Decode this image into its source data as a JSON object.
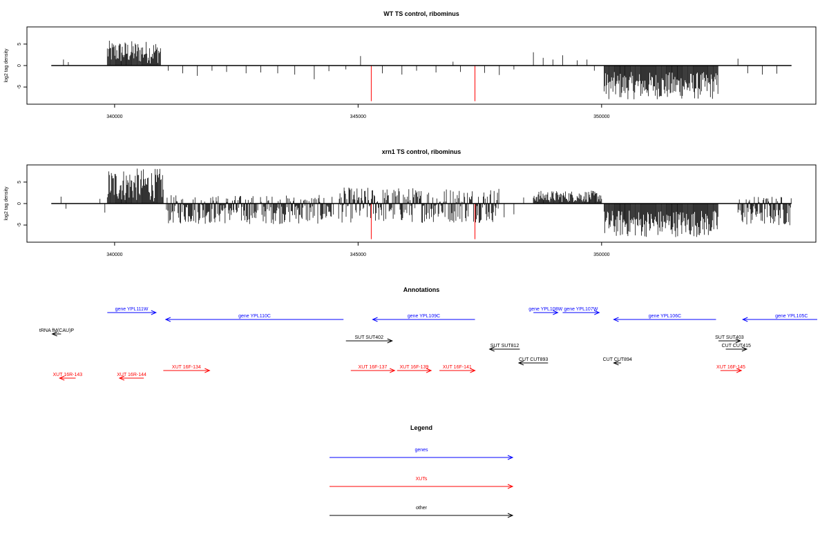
{
  "chart_data": [
    {
      "type": "bar",
      "title": "WT TS control, ribominus",
      "ylabel": "log2 tag density",
      "xlabel": "",
      "xlim": [
        338200,
        354400
      ],
      "ylim": [
        -9,
        9
      ],
      "x_ticks": [
        340000,
        345000,
        350000
      ],
      "x_tick_labels": [
        "340000",
        "345000",
        "350000"
      ],
      "y_ticks": [
        -5,
        0,
        5
      ],
      "y_tick_labels": [
        "-5",
        "0",
        "5"
      ],
      "baseline_range": [
        338700,
        353900
      ],
      "regions": [
        {
          "start": 339850,
          "end": 340950,
          "min": 0.5,
          "max": 5.8
        },
        {
          "start": 350050,
          "end": 352400,
          "min": -7.9,
          "max": -1.5
        }
      ],
      "sparse": [
        [
          338950,
          1.4
        ],
        [
          339050,
          0.8
        ],
        [
          341100,
          -1.2
        ],
        [
          341400,
          -1.8
        ],
        [
          341700,
          -2.4
        ],
        [
          342000,
          -1.2
        ],
        [
          342300,
          -1.5
        ],
        [
          342700,
          -1.8
        ],
        [
          343000,
          -1.6
        ],
        [
          343350,
          -1.8
        ],
        [
          343700,
          -2.1
        ],
        [
          344100,
          -3.2
        ],
        [
          344400,
          -1.3
        ],
        [
          344750,
          -0.9
        ],
        [
          345050,
          2.2
        ],
        [
          345500,
          -1.8
        ],
        [
          345900,
          -2.1
        ],
        [
          346200,
          -1.2
        ],
        [
          346600,
          -1.6
        ],
        [
          346950,
          0.9
        ],
        [
          347100,
          -1.5
        ],
        [
          347600,
          -1.7
        ],
        [
          347900,
          -2.2
        ],
        [
          348200,
          -0.9
        ],
        [
          348600,
          3.1
        ],
        [
          348800,
          1.8
        ],
        [
          349000,
          1.4
        ],
        [
          349200,
          2.4
        ],
        [
          349500,
          1.2
        ],
        [
          349700,
          1.4
        ],
        [
          349850,
          -1.2
        ],
        [
          352800,
          1.6
        ],
        [
          353000,
          -1.8
        ],
        [
          353300,
          -2.1
        ],
        [
          353600,
          -1.9
        ]
      ],
      "highlights": [
        {
          "x": 345270,
          "y": -8.3,
          "color": "#ff0000"
        },
        {
          "x": 347400,
          "y": -8.3,
          "color": "#ff0000"
        }
      ]
    },
    {
      "type": "bar",
      "title": "xrn1 TS control, ribominus",
      "ylabel": "log2 tag density",
      "xlabel": "",
      "xlim": [
        338200,
        354400
      ],
      "ylim": [
        -9,
        9
      ],
      "x_ticks": [
        340000,
        345000,
        350000
      ],
      "x_tick_labels": [
        "340000",
        "345000",
        "350000"
      ],
      "y_ticks": [
        -5,
        0,
        5
      ],
      "y_tick_labels": [
        "-5",
        "0",
        "5"
      ],
      "baseline_range": [
        338700,
        353900
      ],
      "regions": [
        {
          "start": 339850,
          "end": 341000,
          "min": 0.5,
          "max": 8.2
        },
        {
          "start": 341050,
          "end": 344500,
          "min": -4.8,
          "max": 2.0
        },
        {
          "start": 344600,
          "end": 347900,
          "min": -4.5,
          "max": 3.8
        },
        {
          "start": 348600,
          "end": 350000,
          "min": 0.3,
          "max": 3.0
        },
        {
          "start": 350050,
          "end": 352400,
          "min": -7.8,
          "max": -1.5
        },
        {
          "start": 352800,
          "end": 353900,
          "min": -5.2,
          "max": 1.8
        }
      ],
      "sparse": [
        [
          338900,
          1.6
        ],
        [
          339000,
          -1.2
        ],
        [
          339700,
          1.1
        ],
        [
          339800,
          -2.1
        ],
        [
          348000,
          -3.2
        ],
        [
          348200,
          -2.5
        ],
        [
          348400,
          1.4
        ]
      ],
      "highlights": [
        {
          "x": 345270,
          "y": -8.3,
          "color": "#ff0000"
        },
        {
          "x": 347400,
          "y": -8.3,
          "color": "#ff0000"
        }
      ]
    }
  ],
  "annotations": {
    "title": "Annotations",
    "items": [
      {
        "label": "gene YPL111W",
        "start": 339850,
        "end": 340850,
        "dir": "right",
        "row": 0,
        "cat": "gene"
      },
      {
        "label": "gene YPL110C",
        "start": 341050,
        "end": 344700,
        "dir": "left",
        "row": 1,
        "cat": "gene"
      },
      {
        "label": "gene YPL109C",
        "start": 345300,
        "end": 347400,
        "dir": "left",
        "row": 1,
        "cat": "gene"
      },
      {
        "label": "gene YPL108W",
        "start": 348600,
        "end": 349100,
        "dir": "right",
        "row": 0,
        "cat": "gene"
      },
      {
        "label": "gene YPL107W",
        "start": 349200,
        "end": 349950,
        "dir": "right",
        "row": 0,
        "cat": "gene"
      },
      {
        "label": "gene YPL106C",
        "start": 350250,
        "end": 352350,
        "dir": "left",
        "row": 1,
        "cat": "gene"
      },
      {
        "label": "gene YPL105C",
        "start": 352900,
        "end": 354900,
        "dir": "left",
        "row": 1,
        "cat": "gene"
      },
      {
        "label": "tRNA fM(CAU)P",
        "start": 338720,
        "end": 338900,
        "dir": "left",
        "row": 2,
        "cat": "other"
      },
      {
        "label": "SUT SUT402",
        "start": 344750,
        "end": 345700,
        "dir": "right",
        "row": 3,
        "cat": "other"
      },
      {
        "label": "SUT SUT812",
        "start": 347700,
        "end": 348320,
        "dir": "left",
        "row": 4,
        "cat": "other"
      },
      {
        "label": "CUT CUT893",
        "start": 348300,
        "end": 348900,
        "dir": "left",
        "row": 5,
        "cat": "other"
      },
      {
        "label": "CUT CUT894",
        "start": 350250,
        "end": 350400,
        "dir": "left",
        "row": 5,
        "cat": "other"
      },
      {
        "label": "SUT SUT403",
        "start": 352400,
        "end": 352850,
        "dir": "right",
        "row": 3,
        "cat": "other"
      },
      {
        "label": "CUT CUT415",
        "start": 352550,
        "end": 352980,
        "dir": "right",
        "row": 4,
        "cat": "other"
      },
      {
        "label": "XUT 16R-143",
        "start": 338870,
        "end": 339200,
        "dir": "left",
        "row": 7,
        "cat": "xut"
      },
      {
        "label": "XUT 16R-144",
        "start": 340100,
        "end": 340600,
        "dir": "left",
        "row": 7,
        "cat": "xut"
      },
      {
        "label": "XUT 16F-134",
        "start": 341000,
        "end": 341950,
        "dir": "right",
        "row": 6,
        "cat": "xut"
      },
      {
        "label": "XUT 16F-137",
        "start": 344850,
        "end": 345750,
        "dir": "right",
        "row": 6,
        "cat": "xut"
      },
      {
        "label": "XUT 16F-139",
        "start": 345800,
        "end": 346500,
        "dir": "right",
        "row": 6,
        "cat": "xut"
      },
      {
        "label": "XUT 16F-141",
        "start": 346670,
        "end": 347400,
        "dir": "right",
        "row": 6,
        "cat": "xut"
      },
      {
        "label": "XUT 16F-145",
        "start": 352440,
        "end": 352870,
        "dir": "right",
        "row": 6,
        "cat": "xut"
      }
    ]
  },
  "legend": {
    "title": "Legend",
    "items": [
      {
        "label": "genes",
        "color": "#0000ff"
      },
      {
        "label": "XUTs",
        "color": "#ff0000"
      },
      {
        "label": "other",
        "color": "#000000"
      }
    ]
  },
  "colors": {
    "gene": "#0000ff",
    "xut": "#ff0000",
    "other": "#000000",
    "data": "#000000"
  }
}
